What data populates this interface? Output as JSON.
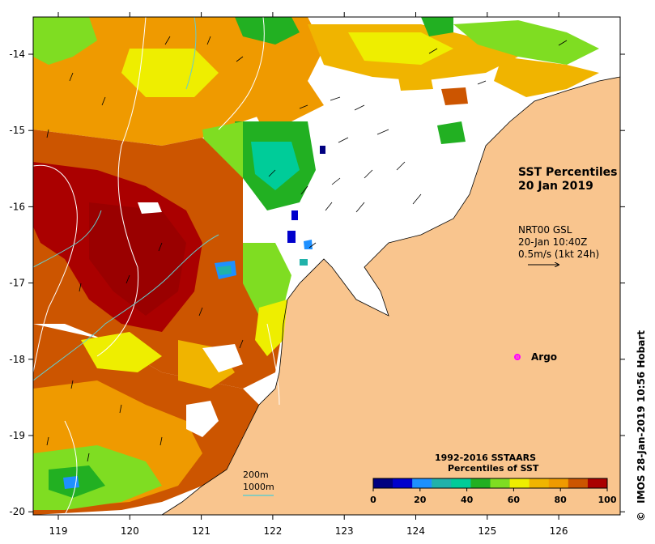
{
  "title": {
    "line1": "SST Percentiles",
    "line2": "20 Jan 2019"
  },
  "currents_info": {
    "line1": "NRT00 GSL",
    "line2": "20-Jan 10:40Z",
    "line3": "0.5m/s (1kt 24h)"
  },
  "argo_label": "Argo",
  "depth_legend": {
    "contour_200": "200m",
    "contour_1000": "1000m"
  },
  "colorbar": {
    "title1": "1992-2016 SSTAARS",
    "title2": "Percentiles of SST",
    "tick_labels": [
      "0",
      "20",
      "40",
      "60",
      "80",
      "100"
    ],
    "colors": [
      "#000080",
      "#0000cc",
      "#1e90ff",
      "#20b2aa",
      "#00cc99",
      "#22b022",
      "#7fdd22",
      "#eeee00",
      "#f0b400",
      "#ef9a00",
      "#cc5500",
      "#aa0000"
    ]
  },
  "axes": {
    "x_ticks": [
      "119",
      "120",
      "121",
      "122",
      "123",
      "124",
      "125",
      "126"
    ],
    "y_ticks": [
      "-14",
      "-15",
      "-16",
      "-17",
      "-18",
      "-19",
      "-20"
    ]
  },
  "credit": "IMOS 28-Jan-2019 10:56 Hobart",
  "credit_symbol": "©",
  "colors": {
    "land": "#f9c58e",
    "nodata": "#ffffff",
    "contour_200": "#ffffff",
    "contour_1000": "#66cccc",
    "argo": "#ff00ff"
  }
}
